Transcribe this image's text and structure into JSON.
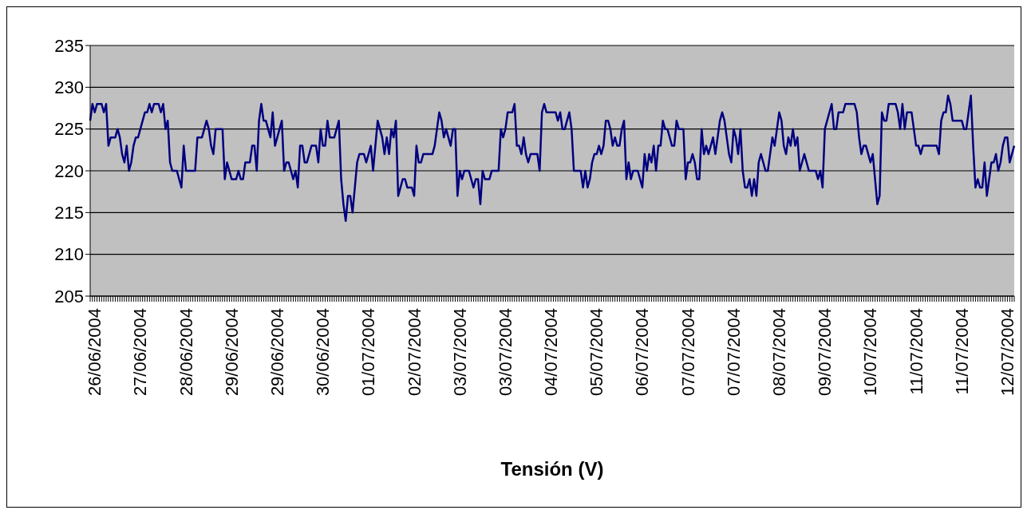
{
  "chart_data": {
    "type": "line",
    "xlabel": "Tensión (V)",
    "categories": [
      null,
      null,
      "26/06/2004",
      null,
      null,
      null,
      null,
      null,
      null,
      null,
      null,
      null,
      null,
      null,
      null,
      null,
      null,
      null,
      null,
      null,
      null,
      null,
      "27/06/2004",
      null,
      null,
      null,
      null,
      null,
      null,
      null,
      null,
      null,
      null,
      null,
      null,
      null,
      null,
      null,
      null,
      null,
      null,
      null,
      "28/06/2004",
      null,
      null,
      null,
      null,
      null,
      null,
      null,
      null,
      null,
      null,
      null,
      null,
      null,
      null,
      null,
      null,
      null,
      null,
      null,
      "29/06/2004",
      null,
      null,
      null,
      null,
      null,
      null,
      null,
      null,
      null,
      null,
      null,
      null,
      null,
      null,
      null,
      null,
      null,
      null,
      null,
      "29/06/2004",
      null,
      null,
      null,
      null,
      null,
      null,
      null,
      null,
      null,
      null,
      null,
      null,
      null,
      null,
      null,
      null,
      null,
      null,
      null,
      "30/06/2004",
      null,
      null,
      null,
      null,
      null,
      null,
      null,
      null,
      null,
      null,
      null,
      null,
      null,
      null,
      null,
      null,
      null,
      null,
      null,
      "01/07/2004",
      null,
      null,
      null,
      null,
      null,
      null,
      null,
      null,
      null,
      null,
      null,
      null,
      null,
      null,
      null,
      null,
      null,
      null,
      null,
      "02/07/2004",
      null,
      null,
      null,
      null,
      null,
      null,
      null,
      null,
      null,
      null,
      null,
      null,
      null,
      null,
      null,
      null,
      null,
      null,
      null,
      "03/07/2004",
      null,
      null,
      null,
      null,
      null,
      null,
      null,
      null,
      null,
      null,
      null,
      null,
      null,
      null,
      null,
      null,
      null,
      null,
      null,
      "03/07/2004",
      null,
      null,
      null,
      null,
      null,
      null,
      null,
      null,
      null,
      null,
      null,
      null,
      null,
      null,
      null,
      null,
      null,
      null,
      null,
      "04/07/2004",
      null,
      null,
      null,
      null,
      null,
      null,
      null,
      null,
      null,
      null,
      null,
      null,
      null,
      null,
      null,
      null,
      null,
      null,
      null,
      "05/07/2004",
      null,
      null,
      null,
      null,
      null,
      null,
      null,
      null,
      null,
      null,
      null,
      null,
      null,
      null,
      null,
      null,
      null,
      null,
      null,
      "06/07/2004",
      null,
      null,
      null,
      null,
      null,
      null,
      null,
      null,
      null,
      null,
      null,
      null,
      null,
      null,
      null,
      null,
      null,
      null,
      null,
      "07/07/2004",
      null,
      null,
      null,
      null,
      null,
      null,
      null,
      null,
      null,
      null,
      null,
      null,
      null,
      null,
      null,
      null,
      null,
      null,
      null,
      "07/07/2004",
      null,
      null,
      null,
      null,
      null,
      null,
      null,
      null,
      null,
      null,
      null,
      null,
      null,
      null,
      null,
      null,
      null,
      null,
      null,
      "08/07/2004",
      null,
      null,
      null,
      null,
      null,
      null,
      null,
      null,
      null,
      null,
      null,
      null,
      null,
      null,
      null,
      null,
      null,
      null,
      null,
      "09/07/2004",
      null,
      null,
      null,
      null,
      null,
      null,
      null,
      null,
      null,
      null,
      null,
      null,
      null,
      null,
      null,
      null,
      null,
      null,
      null,
      "10/07/2004",
      null,
      null,
      null,
      null,
      null,
      null,
      null,
      null,
      null,
      null,
      null,
      null,
      null,
      null,
      null,
      null,
      null,
      null,
      null,
      "11/07/2004",
      null,
      null,
      null,
      null,
      null,
      null,
      null,
      null,
      null,
      null,
      null,
      null,
      null,
      null,
      null,
      null,
      null,
      null,
      null,
      "11/07/2004",
      null,
      null,
      null,
      null,
      null,
      null,
      null,
      null,
      null,
      null,
      null,
      null,
      null,
      null,
      null,
      null,
      null,
      null,
      null,
      "12/07/2004",
      null,
      null,
      null
    ],
    "ylim": [
      205,
      235
    ],
    "yticks": [
      205,
      210,
      215,
      220,
      225,
      230,
      235
    ],
    "grid": "y",
    "marker": "none",
    "line_style": "solid",
    "series": [
      {
        "color": "#000080",
        "values": [
          226,
          228,
          227,
          228,
          228,
          228,
          227,
          228,
          223,
          224,
          224,
          224,
          225,
          224,
          222,
          221,
          223,
          220,
          221,
          223,
          224,
          224,
          225,
          226,
          227,
          227,
          228,
          227,
          228,
          228,
          228,
          227,
          228,
          225,
          226,
          221,
          220,
          220,
          220,
          219,
          218,
          223,
          220,
          220,
          220,
          220,
          220,
          224,
          224,
          224,
          225,
          226,
          225,
          223,
          222,
          225,
          225,
          225,
          225,
          219,
          221,
          220,
          219,
          219,
          219,
          220,
          219,
          219,
          221,
          221,
          221,
          223,
          223,
          220,
          226,
          228,
          226,
          226,
          225,
          224,
          227,
          223,
          224,
          225,
          226,
          220,
          221,
          221,
          220,
          219,
          220,
          218,
          223,
          223,
          221,
          221,
          222,
          223,
          223,
          223,
          221,
          225,
          223,
          223,
          226,
          224,
          224,
          224,
          225,
          226,
          219,
          216,
          214,
          217,
          217,
          215,
          218,
          221,
          222,
          222,
          222,
          221,
          222,
          223,
          220,
          223,
          226,
          225,
          224,
          222,
          224,
          222,
          225,
          224,
          226,
          217,
          218,
          219,
          219,
          218,
          218,
          218,
          217,
          223,
          221,
          221,
          222,
          222,
          222,
          222,
          222,
          223,
          225,
          227,
          226,
          224,
          225,
          224,
          223,
          225,
          225,
          217,
          220,
          219,
          220,
          220,
          220,
          219,
          218,
          219,
          219,
          216,
          220,
          219,
          219,
          219,
          220,
          220,
          220,
          220,
          225,
          224,
          225,
          227,
          227,
          227,
          228,
          223,
          223,
          222,
          224,
          222,
          221,
          222,
          222,
          222,
          222,
          220,
          227,
          228,
          227,
          227,
          227,
          227,
          227,
          226,
          227,
          225,
          225,
          226,
          227,
          225,
          220,
          220,
          220,
          220,
          218,
          220,
          218,
          219,
          221,
          222,
          222,
          223,
          222,
          223,
          226,
          226,
          225,
          223,
          224,
          223,
          223,
          225,
          226,
          219,
          221,
          219,
          220,
          220,
          220,
          219,
          218,
          222,
          220,
          222,
          221,
          223,
          220,
          223,
          223,
          226,
          225,
          225,
          224,
          223,
          223,
          226,
          225,
          225,
          225,
          219,
          221,
          221,
          222,
          221,
          219,
          219,
          225,
          222,
          223,
          222,
          223,
          224,
          222,
          224,
          226,
          227,
          226,
          224,
          222,
          221,
          225,
          224,
          222,
          225,
          220,
          218,
          218,
          219,
          217,
          219,
          217,
          221,
          222,
          221,
          220,
          220,
          222,
          224,
          223,
          225,
          227,
          226,
          223,
          222,
          224,
          223,
          225,
          223,
          224,
          220,
          221,
          222,
          221,
          220,
          220,
          220,
          220,
          219,
          220,
          218,
          225,
          226,
          227,
          228,
          225,
          225,
          227,
          227,
          227,
          228,
          228,
          228,
          228,
          228,
          227,
          224,
          222,
          223,
          223,
          222,
          221,
          222,
          219,
          216,
          217,
          227,
          226,
          226,
          228,
          228,
          228,
          228,
          227,
          225,
          228,
          225,
          227,
          227,
          227,
          225,
          223,
          223,
          222,
          223,
          223,
          223,
          223,
          223,
          223,
          223,
          222,
          226,
          227,
          227,
          229,
          228,
          226,
          226,
          226,
          226,
          226,
          225,
          225,
          227,
          229,
          223,
          218,
          219,
          218,
          218,
          221,
          217,
          219,
          221,
          221,
          222,
          220,
          221,
          223,
          224,
          224,
          221,
          222,
          223
        ]
      }
    ]
  }
}
